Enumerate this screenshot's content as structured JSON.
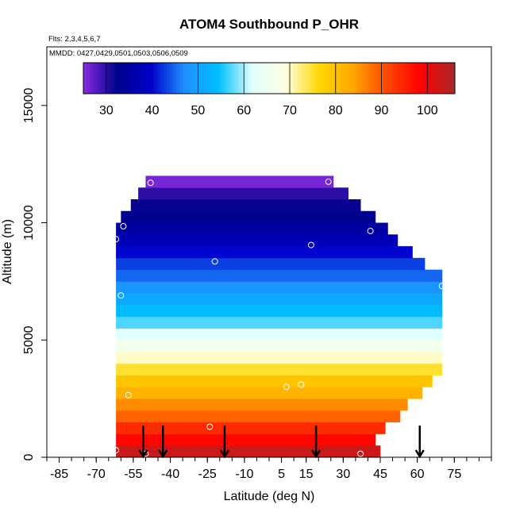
{
  "chart_data": {
    "type": "heatmap",
    "title": "ATOM4 Southbound P_OHR",
    "flights_note": "Flts: 2,3,4,5,6,7",
    "dates_note": "MMDD: 0427,0429,0501,0503,0506,0509",
    "xlabel": "Latitude (deg N)",
    "ylabel": "Altitude (m)",
    "xlim": [
      -90,
      90
    ],
    "ylim": [
      0,
      17500
    ],
    "x_ticks": [
      -85,
      -70,
      -55,
      -40,
      -25,
      -10,
      5,
      15,
      30,
      45,
      60,
      75
    ],
    "y_ticks": [
      0,
      5000,
      10000,
      15000
    ],
    "colorbar": {
      "min": 25,
      "max": 106,
      "ticks": [
        30,
        40,
        50,
        60,
        70,
        80,
        90,
        100
      ],
      "colors": [
        "#8a2be2",
        "#00008b",
        "#0000cd",
        "#1e90ff",
        "#00bfff",
        "#e0ffff",
        "#ffffe0",
        "#ffd700",
        "#ffa500",
        "#ff4500",
        "#ff0000",
        "#a52a2a"
      ]
    },
    "layer_height_m": 500,
    "rows": [
      {
        "alt": 0,
        "lat_min": -62,
        "lat_max": 45,
        "values": [
          103
        ]
      },
      {
        "alt": 500,
        "lat_min": -62,
        "lat_max": 43,
        "values": [
          98
        ]
      },
      {
        "alt": 1000,
        "lat_min": -62,
        "lat_max": 47,
        "values": [
          94
        ]
      },
      {
        "alt": 1500,
        "lat_min": -62,
        "lat_max": 53,
        "values": [
          89
        ]
      },
      {
        "alt": 2000,
        "lat_min": -62,
        "lat_max": 56,
        "values": [
          86
        ]
      },
      {
        "alt": 2500,
        "lat_min": -62,
        "lat_max": 62,
        "values": [
          82
        ]
      },
      {
        "alt": 3000,
        "lat_min": -62,
        "lat_max": 66,
        "values": [
          79
        ]
      },
      {
        "alt": 3500,
        "lat_min": -62,
        "lat_max": 70,
        "values": [
          75
        ]
      },
      {
        "alt": 4000,
        "lat_min": -62,
        "lat_max": 70,
        "values": [
          70
        ]
      },
      {
        "alt": 4500,
        "lat_min": -62,
        "lat_max": 70,
        "values": [
          66
        ]
      },
      {
        "alt": 5000,
        "lat_min": -62,
        "lat_max": 70,
        "values": [
          62
        ]
      },
      {
        "alt": 5500,
        "lat_min": -62,
        "lat_max": 70,
        "values": [
          57
        ]
      },
      {
        "alt": 6000,
        "lat_min": -62,
        "lat_max": 70,
        "values": [
          54
        ]
      },
      {
        "alt": 6500,
        "lat_min": -62,
        "lat_max": 70,
        "values": [
          51
        ]
      },
      {
        "alt": 7000,
        "lat_min": -62,
        "lat_max": 70,
        "values": [
          48
        ]
      },
      {
        "alt": 7500,
        "lat_min": -62,
        "lat_max": 70,
        "values": [
          45
        ]
      },
      {
        "alt": 8000,
        "lat_min": -62,
        "lat_max": 63,
        "values": [
          43
        ]
      },
      {
        "alt": 8500,
        "lat_min": -62,
        "lat_max": 58,
        "values": [
          40
        ]
      },
      {
        "alt": 9000,
        "lat_min": -62,
        "lat_max": 52,
        "values": [
          37
        ]
      },
      {
        "alt": 9500,
        "lat_min": -62,
        "lat_max": 48,
        "values": [
          35
        ]
      },
      {
        "alt": 10000,
        "lat_min": -60,
        "lat_max": 43,
        "values": [
          33
        ]
      },
      {
        "alt": 10500,
        "lat_min": -56,
        "lat_max": 37,
        "values": [
          32
        ]
      },
      {
        "alt": 11000,
        "lat_min": -53,
        "lat_max": 32,
        "values": [
          30
        ]
      },
      {
        "alt": 11500,
        "lat_min": -50,
        "lat_max": 26,
        "values": [
          26
        ]
      }
    ],
    "sample_points": [
      {
        "lat": -62,
        "alt": 9300
      },
      {
        "lat": -59,
        "alt": 9850
      },
      {
        "lat": -48,
        "alt": 11700
      },
      {
        "lat": 24,
        "alt": 11750
      },
      {
        "lat": 41,
        "alt": 9650
      },
      {
        "lat": 17,
        "alt": 9050
      },
      {
        "lat": -22,
        "alt": 8350
      },
      {
        "lat": -60,
        "alt": 6900
      },
      {
        "lat": 70,
        "alt": 7300
      },
      {
        "lat": -57,
        "alt": 2650
      },
      {
        "lat": 7,
        "alt": 3000
      },
      {
        "lat": 13,
        "alt": 3100
      },
      {
        "lat": -24,
        "alt": 1300
      },
      {
        "lat": -62,
        "alt": 300
      },
      {
        "lat": -50,
        "alt": 150
      },
      {
        "lat": 37,
        "alt": 150
      }
    ],
    "arrows": [
      -51,
      -43,
      -18,
      19,
      61
    ]
  }
}
